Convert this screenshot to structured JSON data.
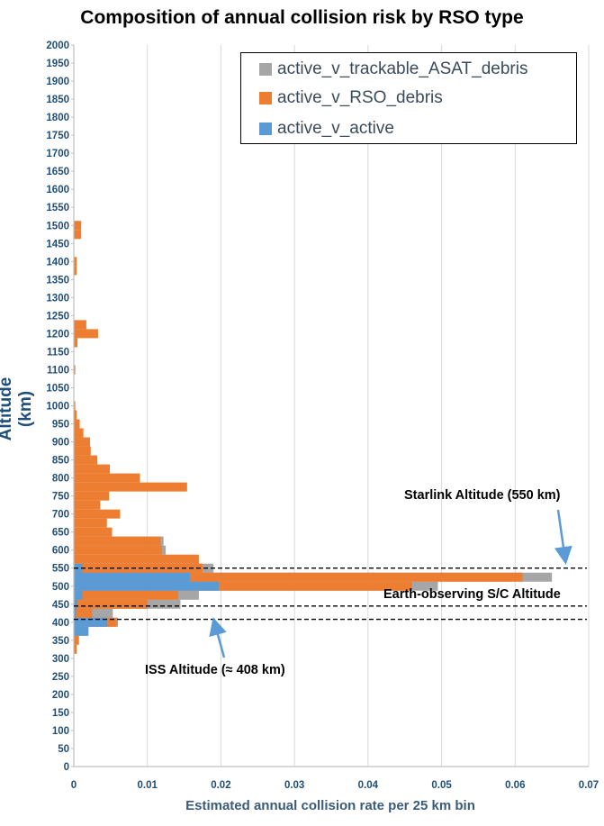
{
  "chart_data": {
    "type": "bar",
    "orientation": "horizontal",
    "stacked": false,
    "title": "Composition of annual collision risk by RSO type",
    "xlabel": "Estimated annual collision rate per 25 km bin",
    "ylabel": "Altitude (km)",
    "xlim": [
      0,
      0.07
    ],
    "ylim": [
      0,
      2000
    ],
    "x_ticks": [
      "0",
      "0.01",
      "0.02",
      "0.03",
      "0.04",
      "0.05",
      "0.06",
      "0.07"
    ],
    "y_ticks": [
      "0",
      "50",
      "100",
      "150",
      "200",
      "250",
      "300",
      "350",
      "400",
      "450",
      "500",
      "550",
      "600",
      "650",
      "700",
      "750",
      "800",
      "850",
      "900",
      "950",
      "1000",
      "1050",
      "1100",
      "1150",
      "1200",
      "1250",
      "1300",
      "1350",
      "1400",
      "1450",
      "1500",
      "1550",
      "1600",
      "1650",
      "1700",
      "1750",
      "1800",
      "1850",
      "1900",
      "1950",
      "2000"
    ],
    "grid": true,
    "legend_position": "top-right",
    "bin_width_km": 25,
    "series": [
      {
        "name": "active_v_trackable_ASAT_debris",
        "color": "#a6a6a6",
        "points": [
          {
            "alt": 550,
            "value": 0.019
          },
          {
            "alt": 525,
            "value": 0.065
          },
          {
            "alt": 500,
            "value": 0.0495
          },
          {
            "alt": 475,
            "value": 0.017
          },
          {
            "alt": 450,
            "value": 0.0145
          },
          {
            "alt": 425,
            "value": 0.0053
          },
          {
            "alt": 400,
            "value": 0.006
          },
          {
            "alt": 600,
            "value": 0.0125
          },
          {
            "alt": 625,
            "value": 0.0122
          }
        ]
      },
      {
        "name": "active_v_RSO_debris",
        "color": "#ed7d31",
        "points": [
          {
            "alt": 1500,
            "value": 0.001
          },
          {
            "alt": 1475,
            "value": 0.001
          },
          {
            "alt": 1400,
            "value": 0.0004
          },
          {
            "alt": 1375,
            "value": 0.0004
          },
          {
            "alt": 1225,
            "value": 0.0017
          },
          {
            "alt": 1200,
            "value": 0.0033
          },
          {
            "alt": 1175,
            "value": 0.0005
          },
          {
            "alt": 1100,
            "value": 0.0002
          },
          {
            "alt": 1000,
            "value": 0.0002
          },
          {
            "alt": 975,
            "value": 0.0004
          },
          {
            "alt": 950,
            "value": 0.0008
          },
          {
            "alt": 925,
            "value": 0.0013
          },
          {
            "alt": 900,
            "value": 0.0022
          },
          {
            "alt": 875,
            "value": 0.0023
          },
          {
            "alt": 850,
            "value": 0.0032
          },
          {
            "alt": 825,
            "value": 0.0049
          },
          {
            "alt": 800,
            "value": 0.009
          },
          {
            "alt": 775,
            "value": 0.0154
          },
          {
            "alt": 750,
            "value": 0.0048
          },
          {
            "alt": 725,
            "value": 0.0036
          },
          {
            "alt": 700,
            "value": 0.0063
          },
          {
            "alt": 675,
            "value": 0.0045
          },
          {
            "alt": 650,
            "value": 0.0052
          },
          {
            "alt": 625,
            "value": 0.0118
          },
          {
            "alt": 600,
            "value": 0.012
          },
          {
            "alt": 575,
            "value": 0.017
          },
          {
            "alt": 550,
            "value": 0.0175
          },
          {
            "alt": 525,
            "value": 0.061
          },
          {
            "alt": 500,
            "value": 0.046
          },
          {
            "alt": 475,
            "value": 0.0142
          },
          {
            "alt": 450,
            "value": 0.01
          },
          {
            "alt": 425,
            "value": 0.0025
          },
          {
            "alt": 400,
            "value": 0.0058
          },
          {
            "alt": 375,
            "value": 0.0018
          },
          {
            "alt": 350,
            "value": 0.0007
          },
          {
            "alt": 325,
            "value": 0.0004
          }
        ]
      },
      {
        "name": "active_v_active",
        "color": "#5b9bd5",
        "points": [
          {
            "alt": 550,
            "value": 0.0012
          },
          {
            "alt": 525,
            "value": 0.0158
          },
          {
            "alt": 500,
            "value": 0.0197
          },
          {
            "alt": 475,
            "value": 0.0012
          },
          {
            "alt": 450,
            "value": 0.0005
          },
          {
            "alt": 425,
            "value": 0.0003
          },
          {
            "alt": 400,
            "value": 0.0045
          },
          {
            "alt": 375,
            "value": 0.002
          }
        ]
      }
    ],
    "annotations": [
      {
        "text": "Starlink Altitude (550 km)",
        "alt": 550
      },
      {
        "text": "Earth-observing S/C Altitude",
        "alt": 445
      },
      {
        "text": "ISS Altitude (≈ 408 km)",
        "alt": 408
      }
    ]
  }
}
